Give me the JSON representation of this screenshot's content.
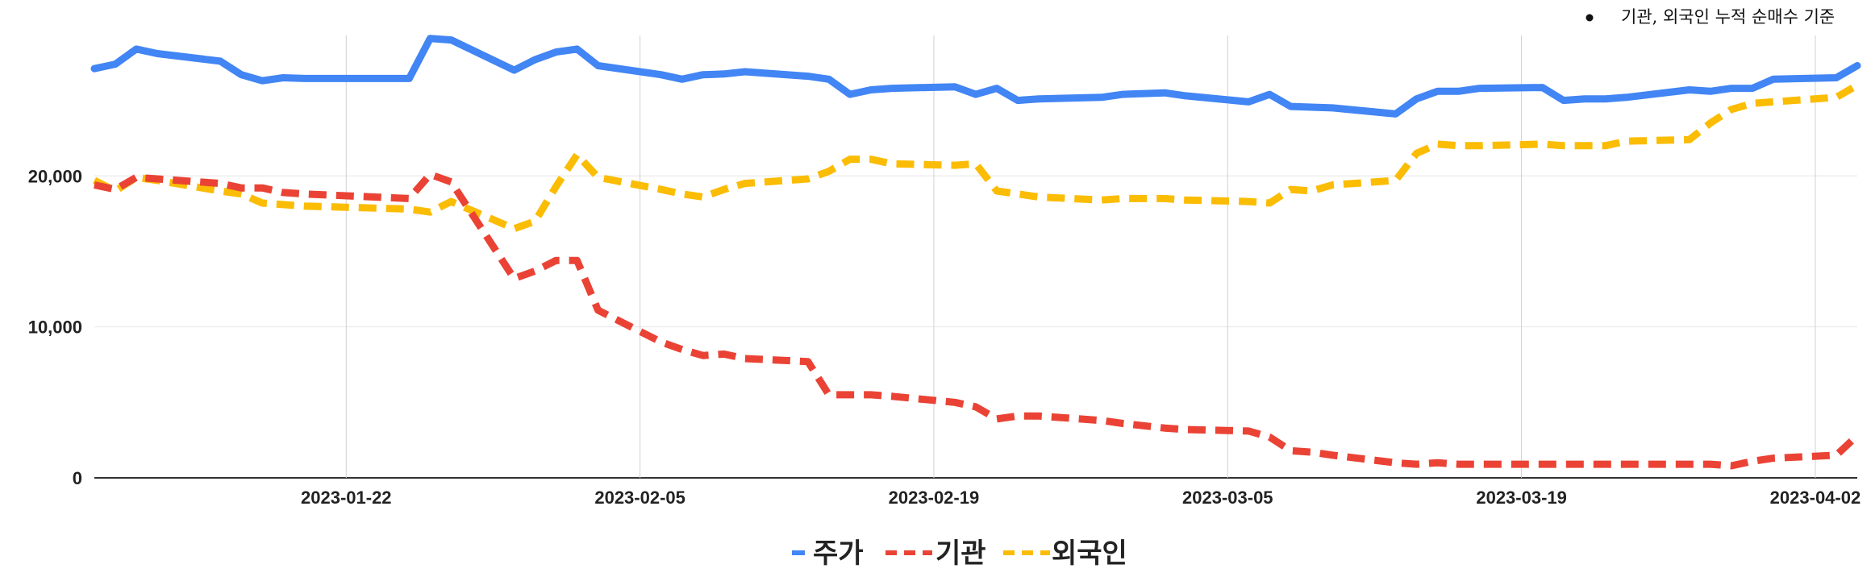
{
  "note": "기관, 외국인 누적 순매수 기준",
  "chart_data": {
    "type": "line",
    "x": [
      "2023-01-10",
      "2023-01-11",
      "2023-01-12",
      "2023-01-13",
      "2023-01-16",
      "2023-01-17",
      "2023-01-18",
      "2023-01-19",
      "2023-01-20",
      "2023-01-25",
      "2023-01-26",
      "2023-01-27",
      "2023-01-30",
      "2023-01-31",
      "2023-02-01",
      "2023-02-02",
      "2023-02-03",
      "2023-02-06",
      "2023-02-07",
      "2023-02-08",
      "2023-02-09",
      "2023-02-10",
      "2023-02-13",
      "2023-02-14",
      "2023-02-15",
      "2023-02-16",
      "2023-02-17",
      "2023-02-20",
      "2023-02-21",
      "2023-02-22",
      "2023-02-23",
      "2023-02-24",
      "2023-02-27",
      "2023-02-28",
      "2023-03-02",
      "2023-03-03",
      "2023-03-06",
      "2023-03-07",
      "2023-03-08",
      "2023-03-09",
      "2023-03-10",
      "2023-03-13",
      "2023-03-14",
      "2023-03-15",
      "2023-03-16",
      "2023-03-17",
      "2023-03-20",
      "2023-03-21",
      "2023-03-22",
      "2023-03-23",
      "2023-03-24",
      "2023-03-27",
      "2023-03-28",
      "2023-03-29",
      "2023-03-30",
      "2023-03-31",
      "2023-04-03",
      "2023-04-04"
    ],
    "x_ticks": [
      "2023-01-22",
      "2023-02-05",
      "2023-02-19",
      "2023-03-05",
      "2023-03-19",
      "2023-04-02"
    ],
    "y_ticks": [
      0,
      10000,
      20000
    ],
    "y_tick_labels": [
      "0",
      "10,000",
      "20,000"
    ],
    "ylim": [
      0,
      29300
    ],
    "grid": true,
    "legend_position": "bottom",
    "series": [
      {
        "name": "주가",
        "color": "#4285f4",
        "style": "solid",
        "values": [
          27100,
          27400,
          28400,
          28100,
          27600,
          26700,
          26300,
          26500,
          26450,
          26450,
          29100,
          29000,
          27000,
          27700,
          28200,
          28400,
          27300,
          26700,
          26400,
          26700,
          26750,
          26900,
          26600,
          26400,
          25400,
          25700,
          25800,
          25900,
          25400,
          25800,
          25000,
          25100,
          25200,
          25400,
          25500,
          25300,
          24900,
          25400,
          24600,
          24550,
          24500,
          24100,
          25100,
          25600,
          25600,
          25800,
          25850,
          25000,
          25100,
          25100,
          25200,
          25700,
          25600,
          25800,
          25800,
          26400,
          26500,
          27300
        ]
      },
      {
        "name": "기관",
        "color": "#ea4335",
        "style": "dashed",
        "values": [
          19400,
          19100,
          19900,
          19800,
          19500,
          19200,
          19200,
          18900,
          18800,
          18500,
          20100,
          19600,
          13200,
          13700,
          14400,
          14400,
          11100,
          9000,
          8500,
          8100,
          8200,
          7900,
          7700,
          5500,
          5500,
          5500,
          5400,
          5000,
          4700,
          3900,
          4100,
          4100,
          3800,
          3600,
          3300,
          3200,
          3100,
          2700,
          1800,
          1700,
          1500,
          1000,
          900,
          1000,
          900,
          900,
          900,
          900,
          900,
          900,
          900,
          900,
          900,
          800,
          1100,
          1300,
          1500,
          2800
        ]
      },
      {
        "name": "외국인",
        "color": "#fbbc04",
        "style": "dashed",
        "values": [
          19700,
          19000,
          19900,
          19700,
          19000,
          18800,
          18200,
          18100,
          18000,
          17800,
          17600,
          18300,
          16500,
          17000,
          19300,
          21400,
          19900,
          19100,
          18800,
          18600,
          19100,
          19500,
          19800,
          20300,
          21100,
          21100,
          20800,
          20700,
          20800,
          19000,
          18800,
          18600,
          18400,
          18500,
          18500,
          18400,
          18300,
          18200,
          19100,
          19000,
          19400,
          19700,
          21500,
          22100,
          22000,
          22000,
          22100,
          22000,
          22000,
          22000,
          22300,
          22400,
          23500,
          24400,
          24800,
          24900,
          25200,
          26000
        ]
      }
    ]
  }
}
